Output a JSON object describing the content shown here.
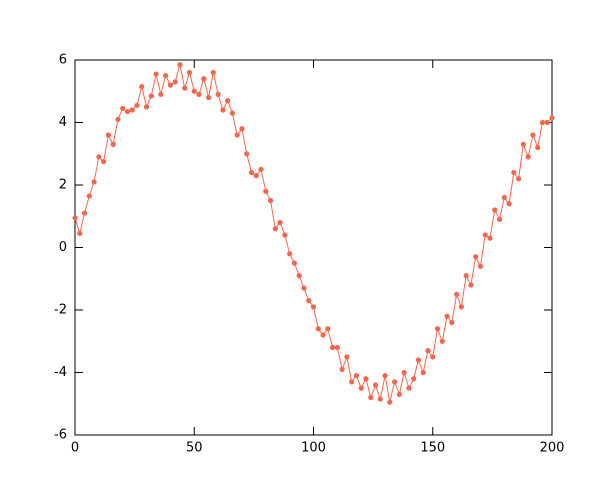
{
  "chart_data": {
    "type": "line",
    "color": "#f4674f",
    "markers": true,
    "x": [
      0,
      2,
      4,
      6,
      8,
      10,
      12,
      14,
      16,
      18,
      20,
      22,
      24,
      26,
      28,
      30,
      32,
      34,
      36,
      38,
      40,
      42,
      44,
      46,
      48,
      50,
      52,
      54,
      56,
      58,
      60,
      62,
      64,
      66,
      68,
      70,
      72,
      74,
      76,
      78,
      80,
      82,
      84,
      86,
      88,
      90,
      92,
      94,
      96,
      98,
      100,
      102,
      104,
      106,
      108,
      110,
      112,
      114,
      116,
      118,
      120,
      122,
      124,
      126,
      128,
      130,
      132,
      134,
      136,
      138,
      140,
      142,
      144,
      146,
      148,
      150,
      152,
      154,
      156,
      158,
      160,
      162,
      164,
      166,
      168,
      170,
      172,
      174,
      176,
      178,
      180,
      182,
      184,
      186,
      188,
      190,
      192,
      194,
      196,
      198,
      200
    ],
    "values": [
      0.95,
      0.45,
      1.1,
      1.65,
      2.1,
      2.9,
      2.75,
      3.6,
      3.3,
      4.1,
      4.45,
      4.35,
      4.4,
      4.55,
      5.15,
      4.5,
      4.85,
      5.55,
      4.9,
      5.5,
      5.2,
      5.3,
      5.85,
      5.1,
      5.6,
      5.0,
      4.9,
      5.4,
      4.8,
      5.6,
      4.9,
      4.4,
      4.7,
      4.3,
      3.6,
      3.8,
      3.0,
      2.4,
      2.3,
      2.5,
      1.8,
      1.5,
      0.6,
      0.8,
      0.4,
      -0.2,
      -0.5,
      -0.9,
      -1.3,
      -1.7,
      -1.9,
      -2.6,
      -2.8,
      -2.6,
      -3.2,
      -3.2,
      -3.9,
      -3.5,
      -4.3,
      -4.1,
      -4.5,
      -4.2,
      -4.8,
      -4.4,
      -4.85,
      -4.1,
      -4.95,
      -4.3,
      -4.7,
      -4.0,
      -4.5,
      -4.2,
      -3.6,
      -4.0,
      -3.3,
      -3.5,
      -2.6,
      -3.0,
      -2.2,
      -2.4,
      -1.5,
      -1.9,
      -0.9,
      -1.2,
      -0.3,
      -0.6,
      0.4,
      0.3,
      1.2,
      0.9,
      1.6,
      1.4,
      2.4,
      2.2,
      3.3,
      2.9,
      3.6,
      3.2,
      4.0,
      4.0,
      4.15
    ],
    "xlim": [
      0,
      200
    ],
    "xticks": [
      0,
      50,
      100,
      150,
      200
    ],
    "ylim": [
      -6,
      6
    ],
    "yticks": [
      -6,
      -4,
      -2,
      0,
      2,
      4,
      6
    ]
  }
}
